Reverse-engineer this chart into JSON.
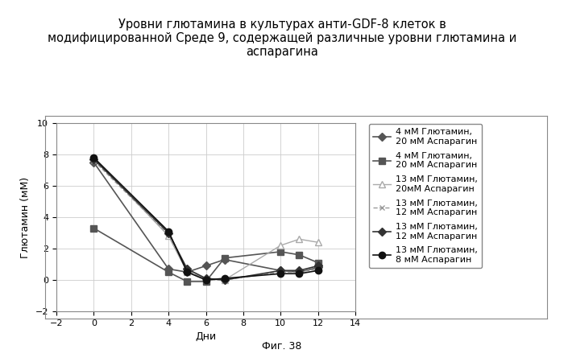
{
  "title": "Уровни глютамина в культурах анти-GDF-8 клеток в\nмодифицированной Среде 9, содержащей различные уровни глютамина и\nаспарагина",
  "xlabel": "Дни",
  "ylabel": "Глютамин (мМ)",
  "figcaption": "Фиг. 38",
  "xlim": [
    -2,
    14
  ],
  "ylim": [
    -2,
    10
  ],
  "xticks": [
    -2,
    0,
    2,
    4,
    6,
    8,
    10,
    12,
    14
  ],
  "yticks": [
    -2,
    0,
    2,
    4,
    6,
    8,
    10
  ],
  "series": [
    {
      "label": "4 мМ Глютамин,\n20 мМ Аспарагин",
      "x": [
        0,
        4,
        5,
        6,
        7,
        10,
        11,
        12
      ],
      "y": [
        7.5,
        0.7,
        0.5,
        0.9,
        1.3,
        0.6,
        0.5,
        0.8
      ],
      "color": "#555555",
      "marker": "D",
      "markersize": 5,
      "linestyle": "-",
      "linewidth": 1.2
    },
    {
      "label": "4 мМ Глютамин,\n20 мМ Аспарагин",
      "x": [
        0,
        4,
        5,
        6,
        7,
        10,
        11,
        12
      ],
      "y": [
        3.3,
        0.5,
        -0.1,
        -0.1,
        1.4,
        1.8,
        1.6,
        1.1
      ],
      "color": "#555555",
      "marker": "s",
      "markersize": 6,
      "linestyle": "-",
      "linewidth": 1.2
    },
    {
      "label": "13 мМ Глютамин,\n20мМ Аспарагин",
      "x": [
        0,
        4,
        5,
        6,
        7,
        10,
        11,
        12
      ],
      "y": [
        7.8,
        2.8,
        0.5,
        0.1,
        0.0,
        2.2,
        2.6,
        2.4
      ],
      "color": "#aaaaaa",
      "marker": "^",
      "markersize": 6,
      "linestyle": "-",
      "linewidth": 1.0,
      "markerfacecolor": "white"
    },
    {
      "label": "13 мМ Глютамин,\n12 мМ Аспарагин",
      "x": [
        0,
        4,
        5,
        6,
        7,
        10,
        11,
        12
      ],
      "y": [
        7.6,
        2.9,
        0.6,
        0.0,
        0.0,
        0.5,
        0.5,
        0.7
      ],
      "color": "#999999",
      "marker": "x",
      "markersize": 5,
      "linestyle": "--",
      "linewidth": 1.0,
      "markerfacecolor": "#999999"
    },
    {
      "label": "13 мМ Глютамин,\n12 мМ Аспарагин",
      "x": [
        0,
        4,
        5,
        6,
        7,
        10,
        11,
        12
      ],
      "y": [
        7.7,
        3.0,
        0.7,
        0.1,
        0.0,
        0.6,
        0.6,
        0.9
      ],
      "color": "#333333",
      "marker": "D",
      "markersize": 5,
      "linestyle": "-",
      "linewidth": 1.2
    },
    {
      "label": "13 мМ Глютамин,\n8 мМ Аспарагин",
      "x": [
        0,
        4,
        5,
        6,
        7,
        10,
        11,
        12
      ],
      "y": [
        7.8,
        3.1,
        0.5,
        0.0,
        0.1,
        0.4,
        0.4,
        0.6
      ],
      "color": "#111111",
      "marker": "o",
      "markersize": 6,
      "linestyle": "-",
      "linewidth": 1.2
    }
  ],
  "background_color": "#ffffff",
  "title_fontsize": 10.5,
  "axis_fontsize": 9,
  "tick_fontsize": 8,
  "legend_fontsize": 8,
  "caption_fontsize": 9
}
